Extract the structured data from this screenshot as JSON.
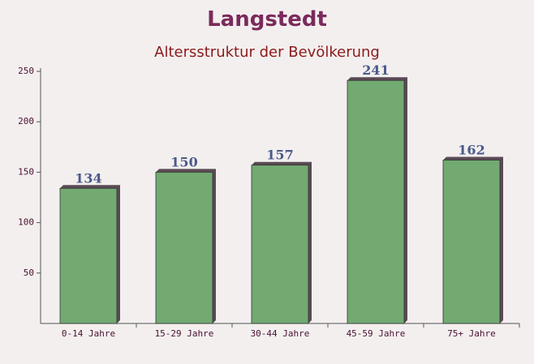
{
  "chart_data": {
    "type": "bar",
    "title": "Langstedt",
    "subtitle": "Altersstruktur der Bevölkerung",
    "categories": [
      "0-14 Jahre",
      "15-29 Jahre",
      "30-44 Jahre",
      "45-59 Jahre",
      "75+ Jahre"
    ],
    "values": [
      134,
      150,
      157,
      241,
      162
    ],
    "color": "#6aa56a",
    "ylim": [
      0,
      250
    ],
    "yticks": [
      50,
      100,
      150,
      200,
      250
    ]
  }
}
